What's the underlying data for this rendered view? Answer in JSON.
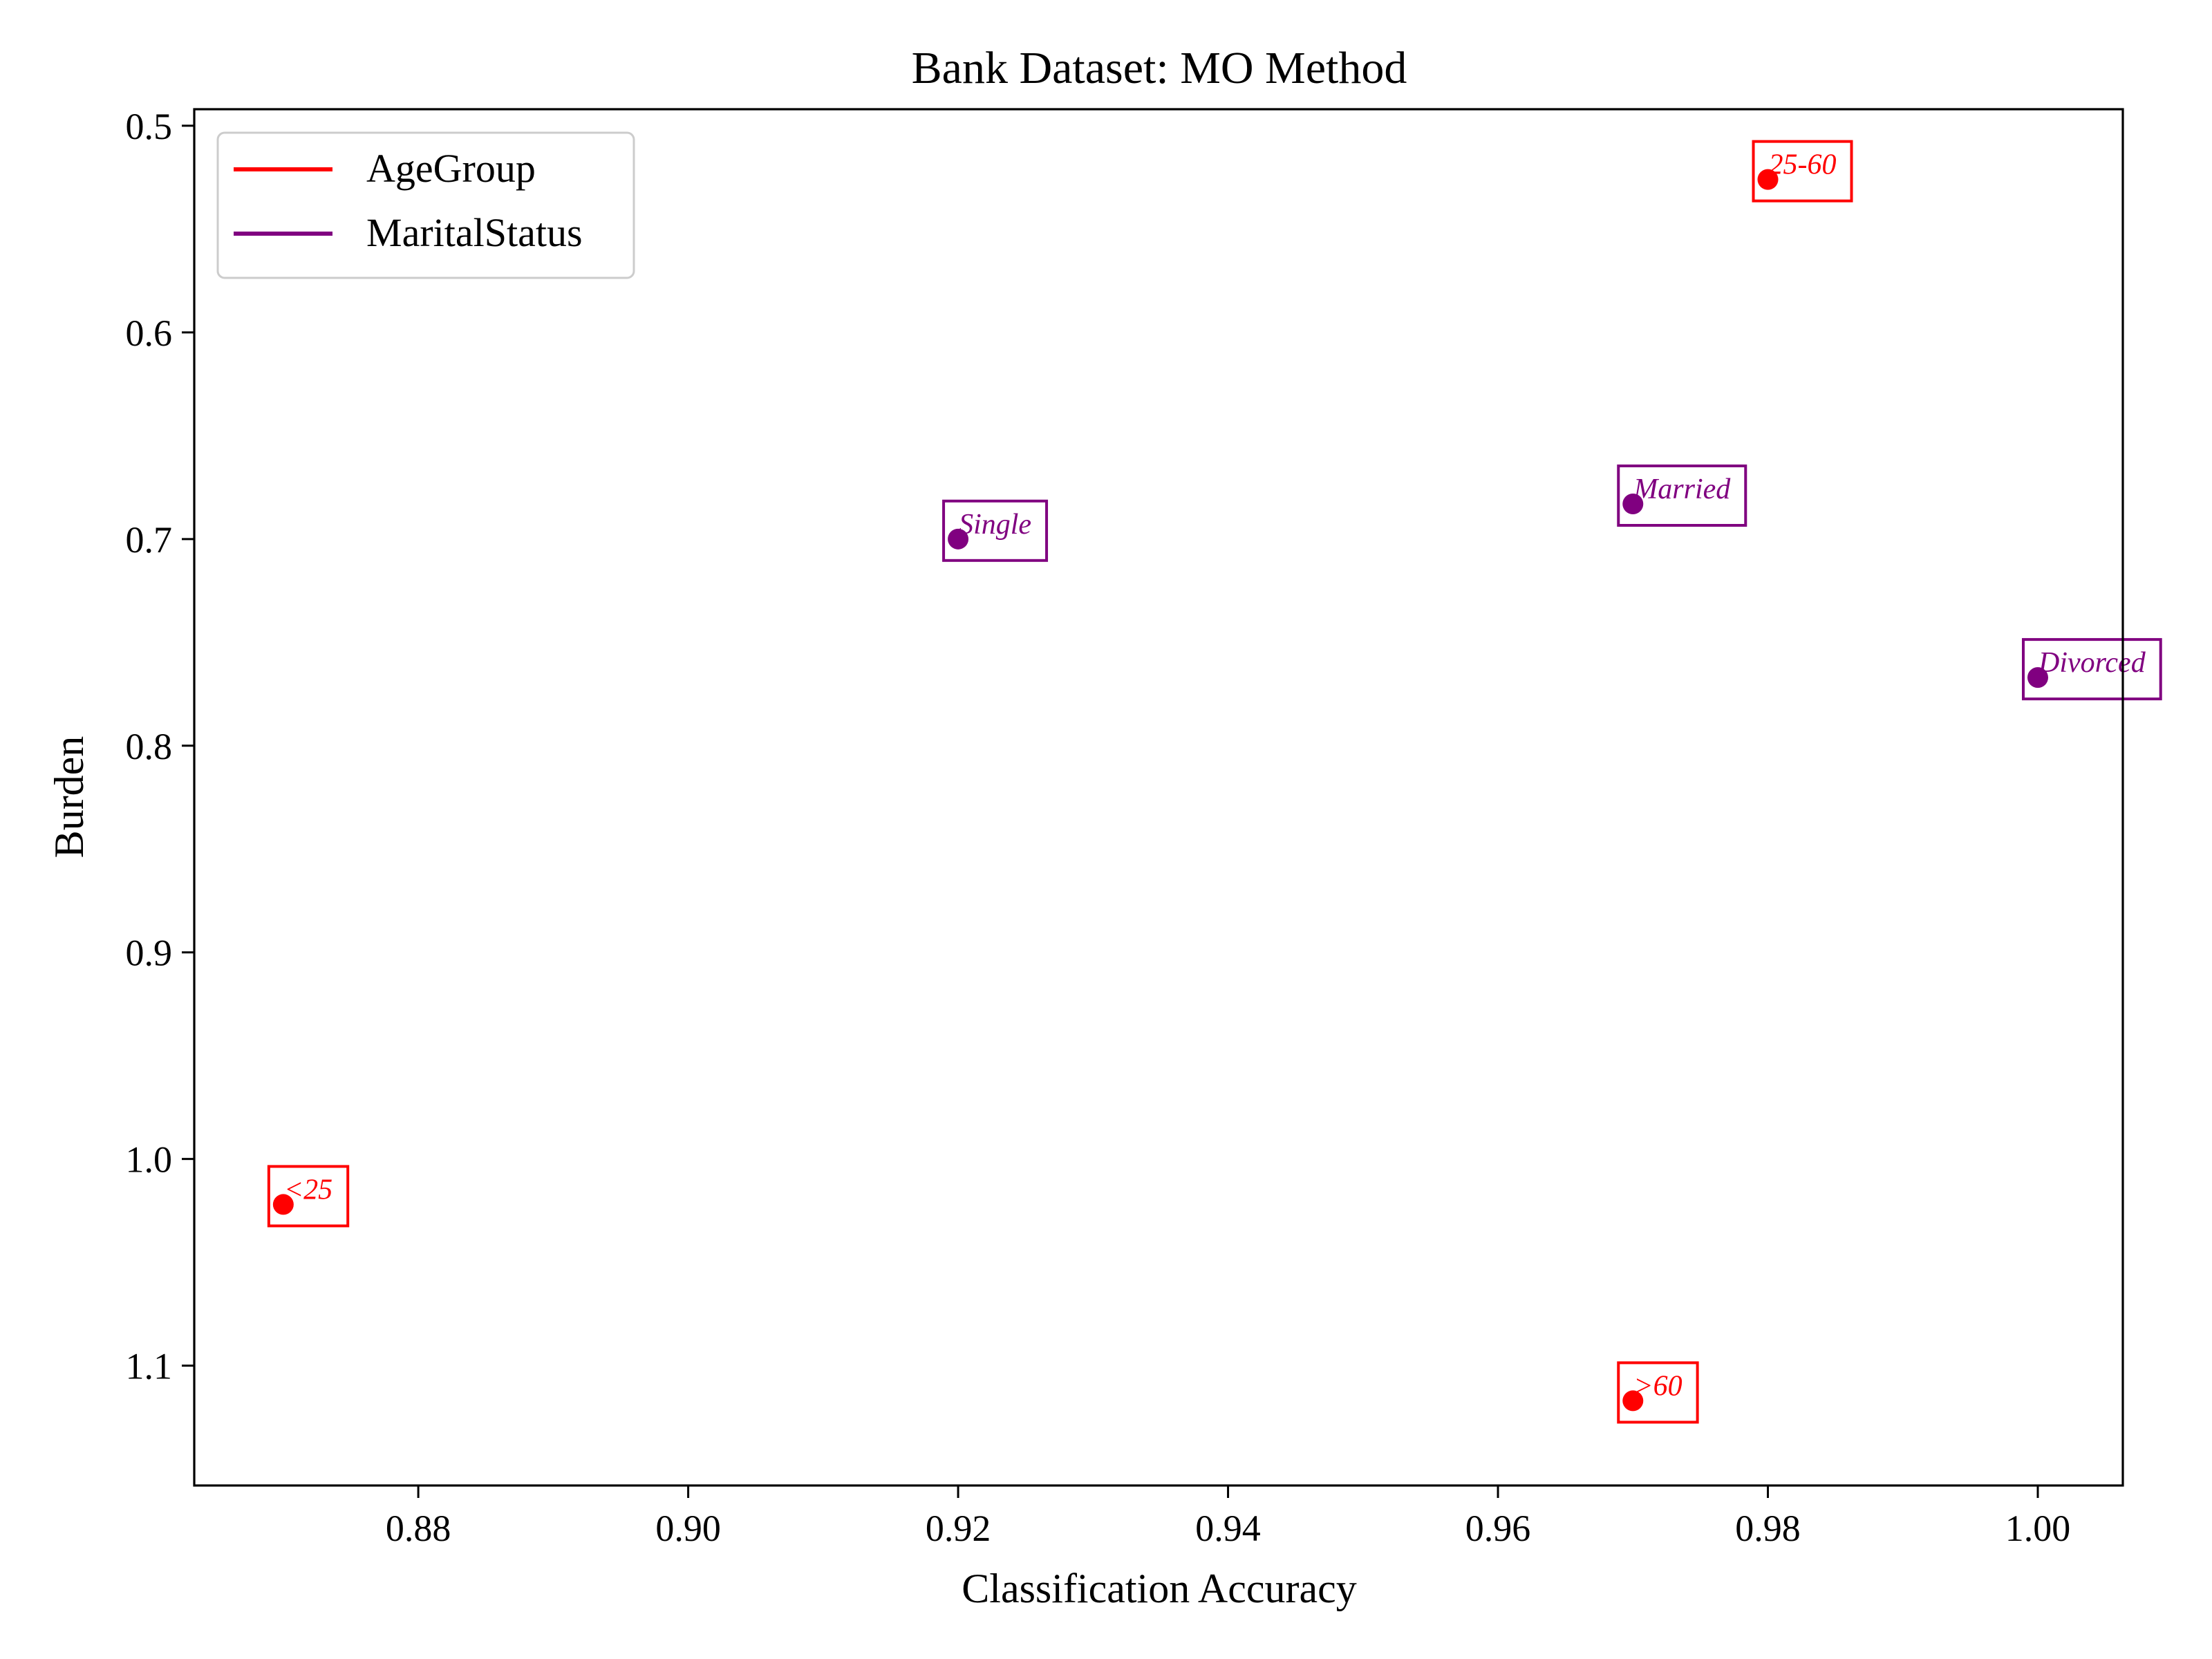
{
  "chart_data": {
    "type": "scatter",
    "title": "Bank Dataset: MO Method",
    "xlabel": "Classification Accuracy",
    "ylabel": "Burden",
    "xlim": [
      0.8634,
      1.0063
    ],
    "ylim": [
      0.492,
      1.158
    ],
    "y_inverted": true,
    "grid": false,
    "legend_position": "top-left",
    "x_ticks": [
      0.88,
      0.9,
      0.92,
      0.94,
      0.96,
      0.98,
      1.0
    ],
    "x_tick_labels": [
      "0.88",
      "0.90",
      "0.92",
      "0.94",
      "0.96",
      "0.98",
      "1.00"
    ],
    "y_ticks": [
      0.5,
      0.6,
      0.7,
      0.8,
      0.9,
      1.0,
      1.1
    ],
    "y_tick_labels": [
      "0.5",
      "0.6",
      "0.7",
      "0.8",
      "0.9",
      "1.0",
      "1.1"
    ],
    "series": [
      {
        "name": "AgeGroup",
        "color": "#ff0000",
        "points": [
          {
            "label": "25-60",
            "x": 0.98,
            "y": 0.526
          },
          {
            "label": "<25",
            "x": 0.87,
            "y": 1.022
          },
          {
            "label": ">60",
            "x": 0.97,
            "y": 1.117
          }
        ]
      },
      {
        "name": "MaritalStatus",
        "color": "#800080",
        "points": [
          {
            "label": "Single",
            "x": 0.92,
            "y": 0.7
          },
          {
            "label": "Married",
            "x": 0.97,
            "y": 0.683
          },
          {
            "label": "Divorced",
            "x": 1.0,
            "y": 0.767
          }
        ]
      }
    ]
  }
}
